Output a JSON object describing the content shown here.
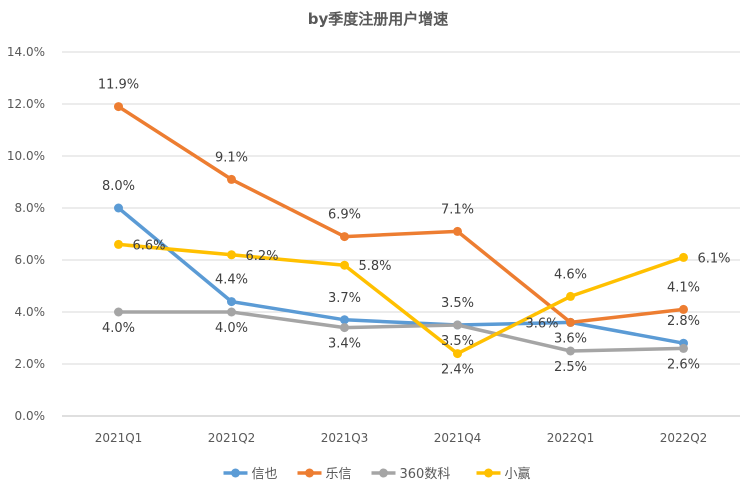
{
  "chart_data": {
    "type": "line",
    "title": "by季度注册用户增速",
    "categories": [
      "2021Q1",
      "2021Q2",
      "2021Q3",
      "2021Q4",
      "2022Q1",
      "2022Q2"
    ],
    "ylim": [
      0,
      14
    ],
    "yticks": [
      "0.0%",
      "2.0%",
      "4.0%",
      "6.0%",
      "8.0%",
      "10.0%",
      "12.0%",
      "14.0%"
    ],
    "grid": true,
    "legend": "bottom",
    "series": [
      {
        "name": "信也",
        "color": "#5B9BD5",
        "values": [
          8.0,
          4.4,
          3.7,
          3.5,
          3.6,
          2.8
        ],
        "labels": [
          "8.0%",
          "4.4%",
          "3.7%",
          "3.5%",
          "3.6%",
          "2.8%"
        ],
        "label_pos": "above"
      },
      {
        "name": "乐信",
        "color": "#ED7D31",
        "values": [
          11.9,
          9.1,
          6.9,
          7.1,
          3.6,
          4.1
        ],
        "labels": [
          "11.9%",
          "9.1%",
          "6.9%",
          "7.1%",
          "3.6%",
          "4.1%"
        ],
        "label_pos": "above"
      },
      {
        "name": "360数科",
        "color": "#A5A5A5",
        "values": [
          4.0,
          4.0,
          3.4,
          3.5,
          2.5,
          2.6
        ],
        "labels": [
          "4.0%",
          "4.0%",
          "3.4%",
          "3.5%",
          "2.5%",
          "2.6%"
        ],
        "label_pos": "above"
      },
      {
        "name": "小赢",
        "color": "#FFC000",
        "values": [
          6.6,
          6.2,
          5.8,
          2.4,
          4.6,
          6.1
        ],
        "labels": [
          "6.6%",
          "6.2%",
          "5.8%",
          "2.4%",
          "4.6%",
          "6.1%"
        ],
        "label_pos": "right"
      }
    ]
  }
}
